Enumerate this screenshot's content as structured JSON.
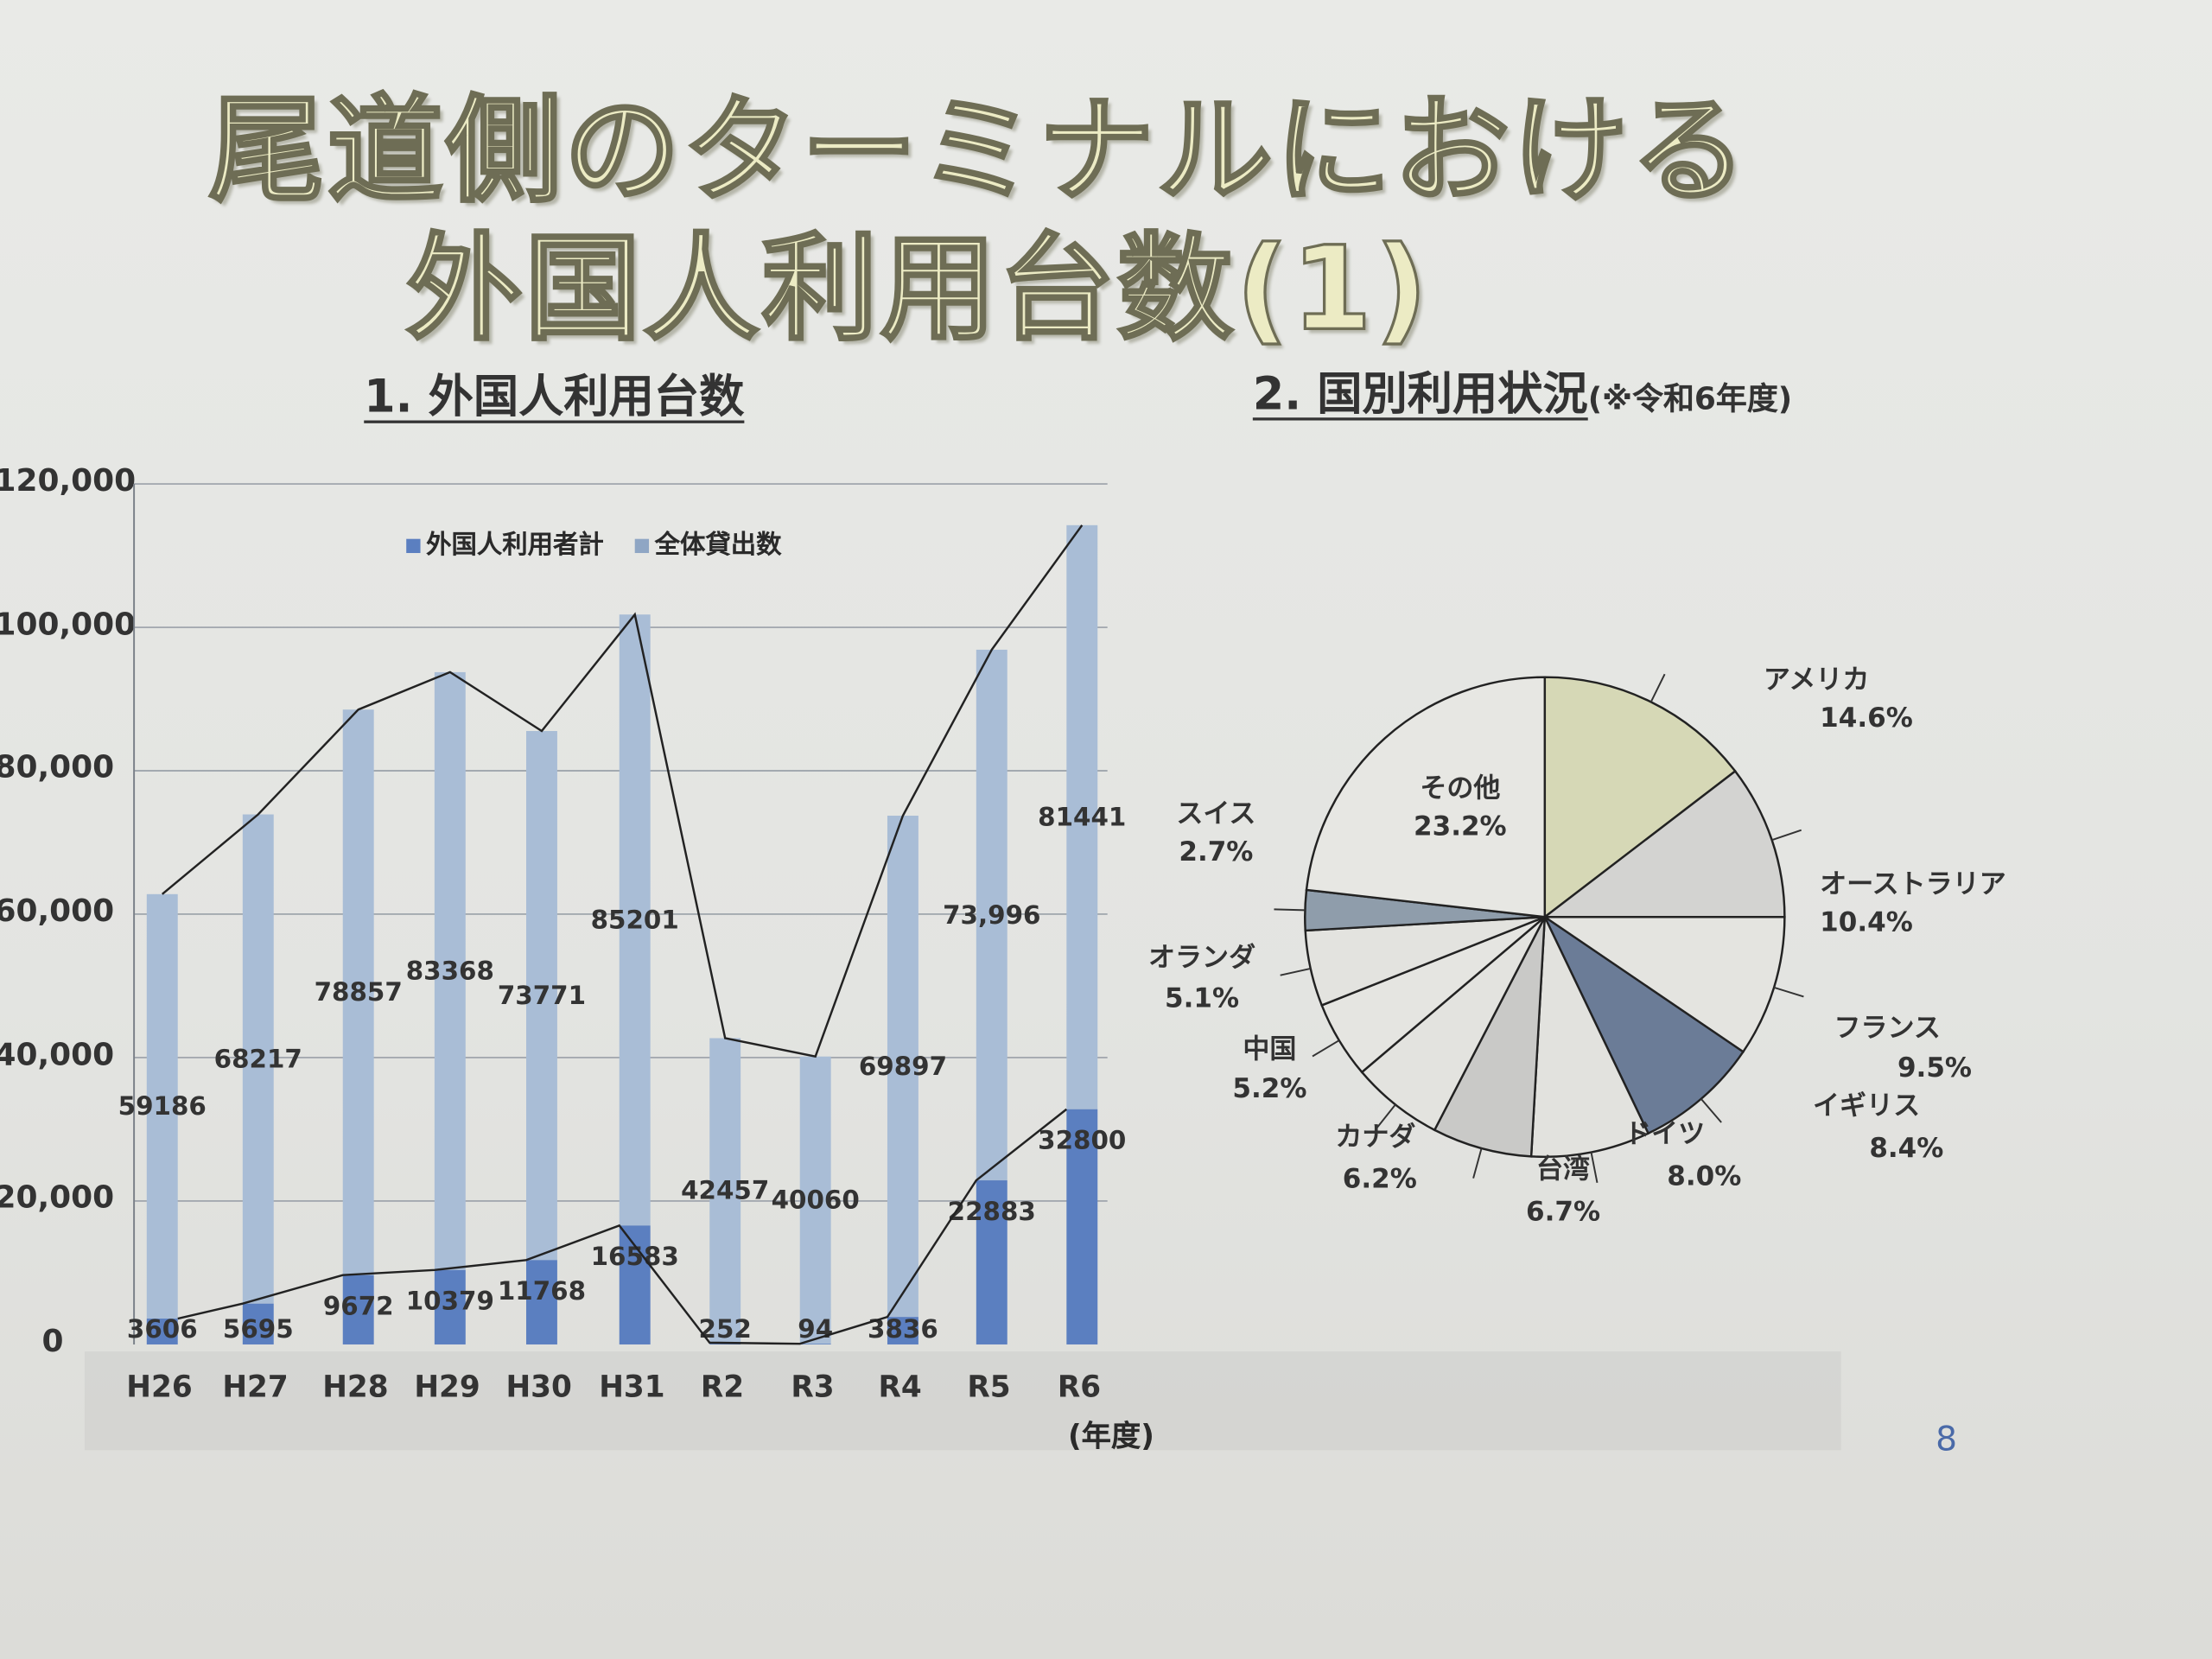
{
  "title": {
    "line1": "尾道側のターミナルにおける",
    "line2": "外国人利用台数(1)"
  },
  "section1": "1. 外国人利用台数",
  "section2": {
    "heading": "2. 国別利用状況",
    "note": "(※令和6年度)"
  },
  "unit_label": "(年度)",
  "page_number": "8",
  "colors": {
    "foreign": "#5b7fc0",
    "total": "#a9bdd6",
    "line": "#222222"
  },
  "chart_data": [
    {
      "type": "bar",
      "stacked": true,
      "title": "1. 外国人利用台数",
      "xlabel": "(年度)",
      "categories": [
        "H26",
        "H27",
        "H28",
        "H29",
        "H30",
        "H31",
        "R2",
        "R3",
        "R4",
        "R5",
        "R6"
      ],
      "ylim": [
        0,
        120000
      ],
      "yticks": [
        "0",
        "20,000",
        "40,000",
        "60,000",
        "80,000",
        "100,000",
        "120,000"
      ],
      "grid": true,
      "legend": "top-left",
      "series": [
        {
          "name": "外国人利用者計",
          "values": [
            3606,
            5695,
            9672,
            10379,
            11768,
            16583,
            252,
            94,
            3836,
            22883,
            32800
          ],
          "labels": [
            "3606",
            "5695",
            "9672",
            "10379",
            "11768",
            "16583",
            "252",
            "94",
            "3836",
            "22883",
            "32800"
          ]
        },
        {
          "name": "全体貸出数",
          "values": [
            59186,
            68217,
            78857,
            83368,
            73771,
            85201,
            42457,
            40060,
            69897,
            73996,
            81441
          ],
          "labels": [
            "59186",
            "68217",
            "78857",
            "83368",
            "73771",
            "85201",
            "42457",
            "40060",
            "69897",
            "73,996",
            "81441"
          ]
        }
      ]
    },
    {
      "type": "pie",
      "title": "2. 国別利用状況 (※令和6年度)",
      "slices": [
        {
          "label": "アメリカ",
          "value": 14.6,
          "text": "14.6%",
          "color": "#d6d8b6"
        },
        {
          "label": "オーストラリア",
          "value": 10.4,
          "text": "10.4%",
          "color": "#d3d3d1"
        },
        {
          "label": "フランス",
          "value": 9.5,
          "text": "9.5%",
          "color": "#e4e4e0"
        },
        {
          "label": "イギリス",
          "value": 8.4,
          "text": "8.4%",
          "color": "#6b7c97"
        },
        {
          "label": "ドイツ",
          "value": 8.0,
          "text": "8.0%",
          "color": "#e2e2de"
        },
        {
          "label": "台湾",
          "value": 6.7,
          "text": "6.7%",
          "color": "#c9c9c7"
        },
        {
          "label": "カナダ",
          "value": 6.2,
          "text": "6.2%",
          "color": "#e3e3df"
        },
        {
          "label": "中国",
          "value": 5.2,
          "text": "5.2%",
          "color": "#e5e5e1"
        },
        {
          "label": "オランダ",
          "value": 5.1,
          "text": "5.1%",
          "color": "#e3e3df"
        },
        {
          "label": "スイス",
          "value": 2.7,
          "text": "2.7%",
          "color": "#8f9dab"
        },
        {
          "label": "その他",
          "value": 23.2,
          "text": "23.2%",
          "color": "#e7e7e3"
        }
      ]
    }
  ]
}
